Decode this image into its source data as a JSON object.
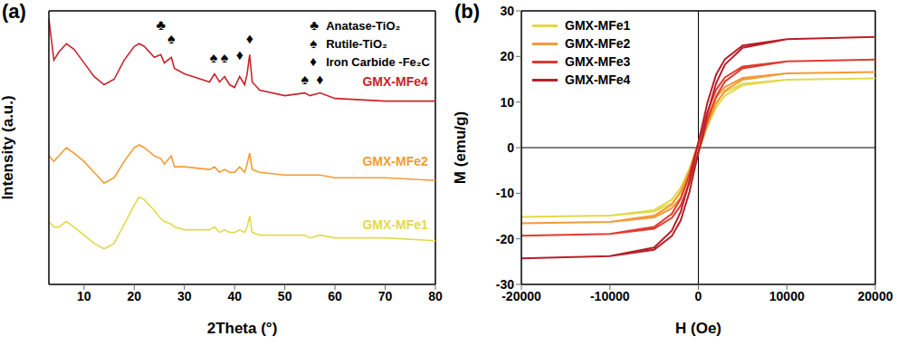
{
  "chart_data": [
    {
      "type": "line",
      "label": "(a)",
      "x_label": "2Theta (°)",
      "y_label": "Intensity (a.u.)",
      "xlim": [
        3,
        80
      ],
      "xticks": [
        10,
        20,
        30,
        40,
        50,
        60,
        70,
        80
      ],
      "ylim": [
        0,
        100
      ],
      "tick_labels": "x",
      "legend": "upper right",
      "x": [
        3,
        4,
        5,
        6.5,
        8,
        10,
        12,
        14,
        16,
        18,
        20,
        21,
        22,
        24,
        25.3,
        26,
        27.4,
        28,
        30,
        35,
        36,
        37,
        38,
        39,
        40,
        41,
        42,
        42.5,
        43,
        43.5,
        45,
        50,
        54,
        55,
        57,
        60,
        70,
        80
      ],
      "series": [
        {
          "name": "GMX-MFe1",
          "color": "#e2d94c",
          "label_at": [
            72,
            22
          ],
          "values": [
            23,
            21,
            21,
            23,
            21,
            18,
            15,
            13,
            15,
            22,
            29,
            32,
            31,
            27,
            24,
            23,
            22,
            21,
            20,
            20,
            21,
            19,
            20,
            19,
            19,
            20,
            19,
            21,
            25,
            19,
            18,
            18,
            18,
            17,
            18,
            17,
            17,
            16
          ]
        },
        {
          "name": "GMX-MFe2",
          "color": "#f39b36",
          "label_at": [
            72,
            45
          ],
          "values": [
            47,
            45,
            47,
            50,
            48,
            45,
            41,
            37,
            39,
            45,
            50,
            51,
            50,
            47,
            46,
            44,
            47,
            43,
            43,
            42,
            43,
            41,
            42,
            41,
            41,
            43,
            41,
            44,
            48,
            42,
            41,
            40,
            40,
            40,
            40,
            39,
            39,
            38
          ]
        },
        {
          "name": "GMX-MFe4",
          "color": "#c8242b",
          "label_at": [
            72,
            74
          ],
          "values": [
            97,
            82,
            85,
            88,
            86,
            81,
            76,
            73,
            75,
            82,
            87,
            88,
            87,
            83,
            84,
            81,
            83,
            79,
            77,
            74,
            77,
            74,
            76,
            73,
            72,
            76,
            73,
            77,
            84,
            74,
            71,
            69,
            70,
            69,
            70,
            68,
            67,
            67
          ]
        }
      ],
      "phases": [
        {
          "symbol": "♣",
          "name": "Anatase-TiO₂"
        },
        {
          "symbol": "♠",
          "name": "Rutile-TiO₂"
        },
        {
          "symbol": "♦",
          "name": "Iron Carbide -Fe₂C"
        }
      ],
      "markers": [
        {
          "symbol": "♣",
          "x": 25.3,
          "y": 95
        },
        {
          "symbol": "♠",
          "x": 27.4,
          "y": 90
        },
        {
          "symbol": "♠",
          "x": 35.8,
          "y": 83
        },
        {
          "symbol": "♠",
          "x": 38,
          "y": 83
        },
        {
          "symbol": "♦",
          "x": 41,
          "y": 84
        },
        {
          "symbol": "♦",
          "x": 43,
          "y": 90
        },
        {
          "symbol": "♠",
          "x": 54,
          "y": 75
        },
        {
          "symbol": "♦",
          "x": 57,
          "y": 75
        }
      ]
    },
    {
      "type": "line",
      "label": "(b)",
      "x_label": "H (Oe)",
      "y_label": "M (emu/g)",
      "xlim": [
        -20000,
        20000
      ],
      "xticks": [
        -20000,
        -10000,
        0,
        10000,
        20000
      ],
      "ylim": [
        -30,
        30
      ],
      "yticks": [
        -30,
        -20,
        -10,
        0,
        10,
        20,
        30
      ],
      "legend": "upper left",
      "reference_lines": {
        "x": [
          0
        ],
        "y": [
          0
        ]
      },
      "x": [
        -20000,
        -10000,
        -5000,
        -3000,
        -2000,
        -1000,
        -500,
        0,
        500,
        1000,
        2000,
        3000,
        5000,
        10000,
        20000,
        10000,
        5000,
        3000,
        2000,
        1000,
        500,
        0,
        -500,
        -1000,
        -2000,
        -3000,
        -5000,
        -10000,
        -20000
      ],
      "series": [
        {
          "name": "GMX-MFe1",
          "color": "#e2d94c",
          "values": [
            -15.2,
            -14.9,
            -14.0,
            -12.2,
            -10.0,
            -6.1,
            -3.3,
            -0.8,
            1.8,
            4.6,
            8.8,
            11.4,
            13.7,
            14.9,
            15.2,
            14.9,
            14.0,
            12.2,
            10.0,
            6.1,
            3.3,
            0.8,
            -1.8,
            -4.6,
            -8.8,
            -11.4,
            -13.7,
            -14.9,
            -15.2
          ]
        },
        {
          "name": "GMX-MFe2",
          "color": "#f39b36",
          "values": [
            -16.6,
            -16.3,
            -15.3,
            -13.3,
            -11.0,
            -6.6,
            -3.7,
            -0.8,
            2.0,
            5.0,
            9.6,
            12.5,
            14.9,
            16.3,
            16.6,
            16.3,
            15.3,
            13.3,
            11.0,
            6.6,
            3.7,
            0.8,
            -2.0,
            -5.0,
            -9.6,
            -12.5,
            -14.9,
            -16.3,
            -16.6
          ]
        },
        {
          "name": "GMX-MFe3",
          "color": "#e23b30",
          "values": [
            -19.3,
            -18.9,
            -17.8,
            -15.4,
            -12.7,
            -7.7,
            -4.2,
            -1.0,
            2.3,
            5.8,
            11.2,
            14.5,
            17.4,
            18.9,
            19.3,
            18.9,
            17.8,
            15.4,
            12.7,
            7.7,
            4.2,
            1.0,
            -2.3,
            -5.8,
            -11.2,
            -14.5,
            -17.4,
            -18.9,
            -19.3
          ]
        },
        {
          "name": "GMX-MFe4",
          "color": "#b8202a",
          "values": [
            -24.3,
            -23.8,
            -22.4,
            -19.4,
            -16.0,
            -9.7,
            -5.3,
            -1.2,
            2.9,
            7.3,
            14.1,
            18.2,
            21.9,
            23.8,
            24.3,
            23.8,
            22.4,
            19.4,
            16.0,
            9.7,
            5.3,
            1.2,
            -2.9,
            -7.3,
            -14.1,
            -18.2,
            -21.9,
            -23.8,
            -24.3
          ]
        }
      ]
    }
  ]
}
